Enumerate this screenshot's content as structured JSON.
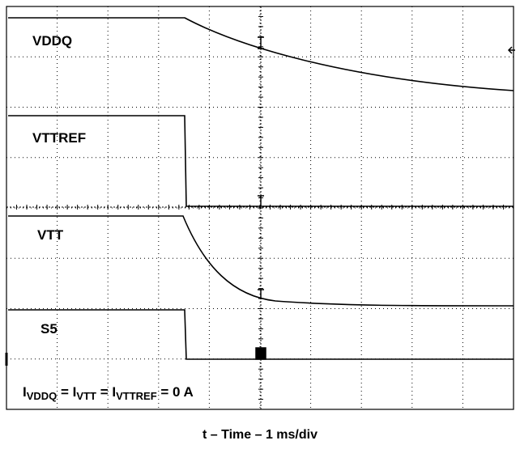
{
  "traces": {
    "vddq": "VDDQ",
    "vttref": "VTTREF",
    "vtt": "VTT",
    "s5": "S5"
  },
  "annotation": {
    "parts": [
      "I",
      "VDDQ",
      " = I",
      "VTT",
      " = I",
      "VTTREF",
      " = 0 A"
    ]
  },
  "caption": "t – Time – 1 ms/div"
}
